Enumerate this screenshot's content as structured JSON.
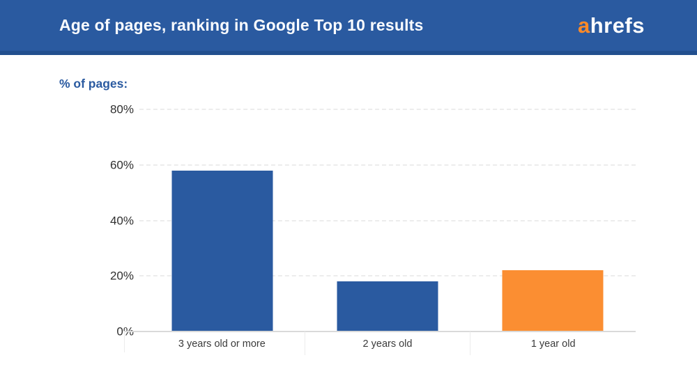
{
  "header": {
    "title": "Age of pages, ranking in Google Top 10 results",
    "logo": {
      "accent": "a",
      "rest": "hrefs"
    }
  },
  "chart_data": {
    "type": "bar",
    "title": "Age of pages, ranking in Google Top 10 results",
    "ylabel": "% of pages:",
    "categories": [
      "3 years old or more",
      "2 years old",
      "1 year old"
    ],
    "values": [
      58,
      18,
      22
    ],
    "unit": "%",
    "bar_colors": [
      "#2a5aa0",
      "#2a5aa0",
      "#fb8e32"
    ],
    "ylim": [
      0,
      80
    ],
    "yticks": [
      0,
      20,
      40,
      60,
      80
    ],
    "ytick_labels": [
      "0%",
      "20%",
      "40%",
      "60%",
      "80%"
    ],
    "grid": "horizontal-dashed",
    "legend": "none"
  },
  "colors": {
    "brand_blue": "#2a5aa0",
    "header_border_blue": "#224f8e",
    "bar_blue": "#2a5aa0",
    "bar_orange": "#fb8e32",
    "logo_accent_orange": "#fd8a28",
    "title_text": "#fafcff",
    "axis_text": "#2f2f2f",
    "gridline": "#ececec"
  }
}
